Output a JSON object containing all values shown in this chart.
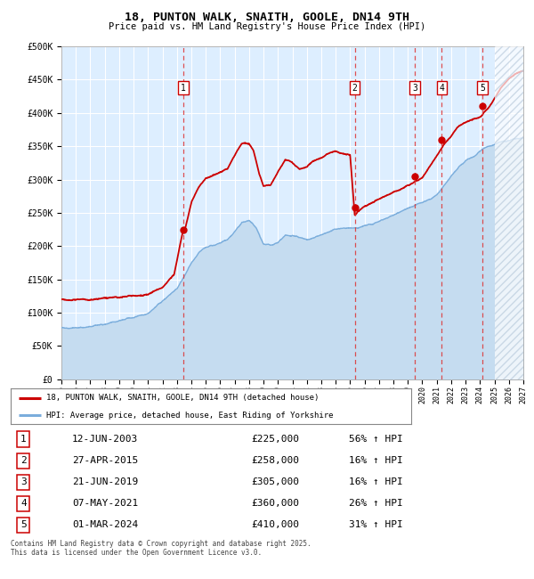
{
  "title": "18, PUNTON WALK, SNAITH, GOOLE, DN14 9TH",
  "subtitle": "Price paid vs. HM Land Registry's House Price Index (HPI)",
  "legend_line1": "18, PUNTON WALK, SNAITH, GOOLE, DN14 9TH (detached house)",
  "legend_line2": "HPI: Average price, detached house, East Riding of Yorkshire",
  "footer": "Contains HM Land Registry data © Crown copyright and database right 2025.\nThis data is licensed under the Open Government Licence v3.0.",
  "sale_color": "#cc0000",
  "hpi_color": "#7aaddc",
  "hpi_fill_color": "#c5dcf0",
  "background_color": "#ddeeff",
  "grid_color": "#ffffff",
  "dashed_line_color": "#dd3333",
  "ylim": [
    0,
    500000
  ],
  "yticks": [
    0,
    50000,
    100000,
    150000,
    200000,
    250000,
    300000,
    350000,
    400000,
    450000,
    500000
  ],
  "sale_dates_x": [
    2003.44,
    2015.32,
    2019.47,
    2021.35,
    2024.17
  ],
  "sale_dates_labels": [
    "12-JUN-2003",
    "27-APR-2015",
    "21-JUN-2019",
    "07-MAY-2021",
    "01-MAR-2024"
  ],
  "sale_prices": [
    225000,
    258000,
    305000,
    360000,
    410000
  ],
  "sale_numbers": [
    "1",
    "2",
    "3",
    "4",
    "5"
  ],
  "sale_percents": [
    "56% ↑ HPI",
    "16% ↑ HPI",
    "16% ↑ HPI",
    "26% ↑ HPI",
    "31% ↑ HPI"
  ],
  "xmin": 1995.0,
  "xmax": 2027.0,
  "hatch_start": 2025.0
}
